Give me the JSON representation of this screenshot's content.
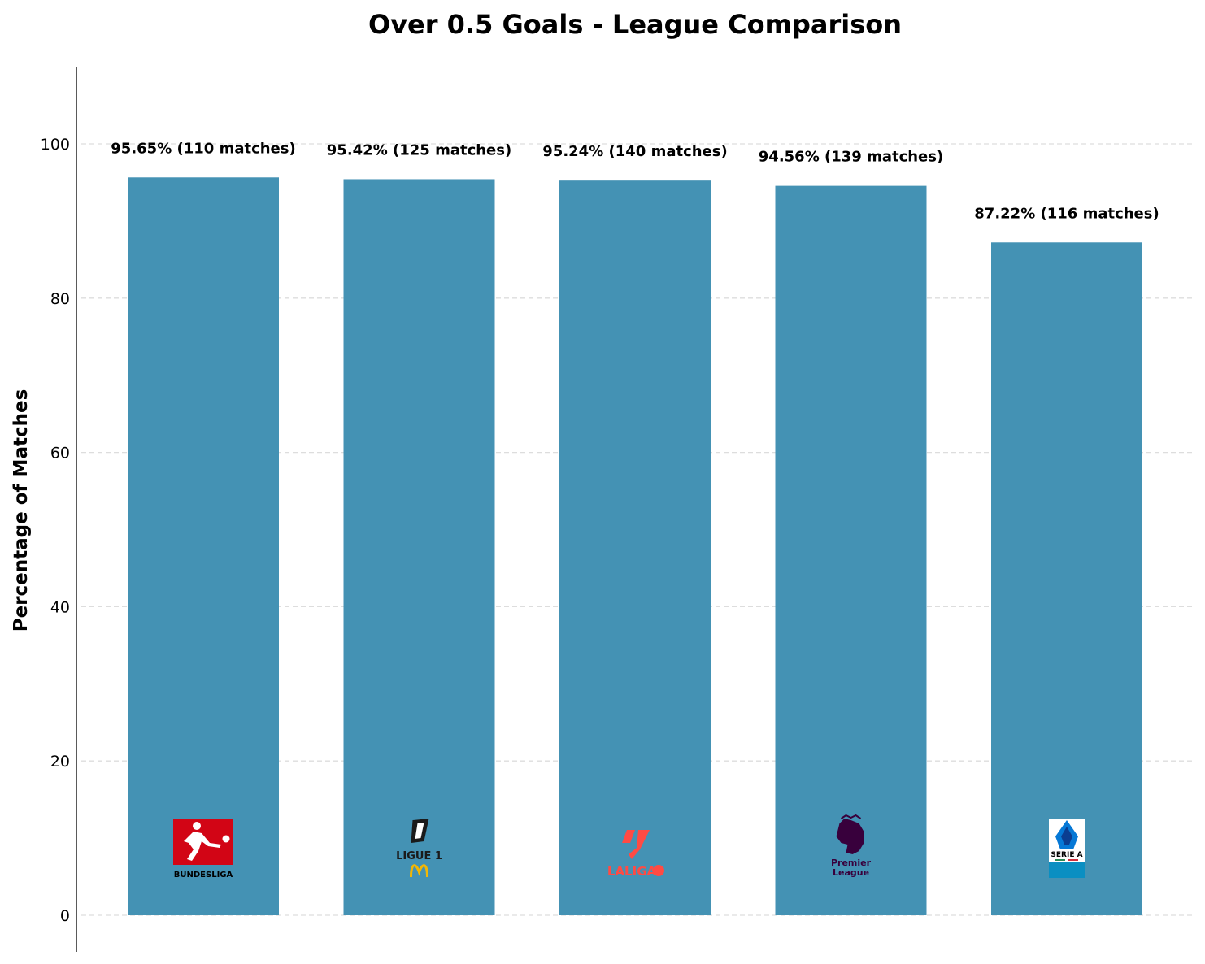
{
  "chart_data": {
    "type": "bar",
    "title": "Over 0.5 Goals - League Comparison",
    "xlabel": "",
    "ylabel": "Percentage of Matches",
    "ylim": [
      -5,
      110
    ],
    "yticks": [
      0,
      20,
      40,
      60,
      80,
      100
    ],
    "grid": "y-dashed",
    "categories": [
      "Bundesliga",
      "Ligue 1",
      "LaLiga",
      "Premier League",
      "Serie A"
    ],
    "values": [
      95.65,
      95.42,
      95.24,
      94.56,
      87.22
    ],
    "data_labels": [
      "95.65% (110 matches)",
      "95.42% (125 matches)",
      "95.24% (140 matches)",
      "94.56% (139 matches)",
      "87.22% (116 matches)"
    ],
    "bar_color": "#4492b4",
    "logos": [
      {
        "icon": "bundesliga-logo",
        "text": "BUNDESLIGA",
        "color": "#d20515"
      },
      {
        "icon": "ligue1-logo",
        "text": "LIGUE 1",
        "color": "#1a1a1a",
        "accent": "#f2b705"
      },
      {
        "icon": "laliga-logo",
        "text": "LALIGA",
        "color": "#ff4b44"
      },
      {
        "icon": "premier-league-logo",
        "text": "Premier League",
        "color": "#38003c"
      },
      {
        "icon": "serie-a-logo",
        "text": "SERIE A",
        "color": "#0578d6"
      }
    ]
  }
}
